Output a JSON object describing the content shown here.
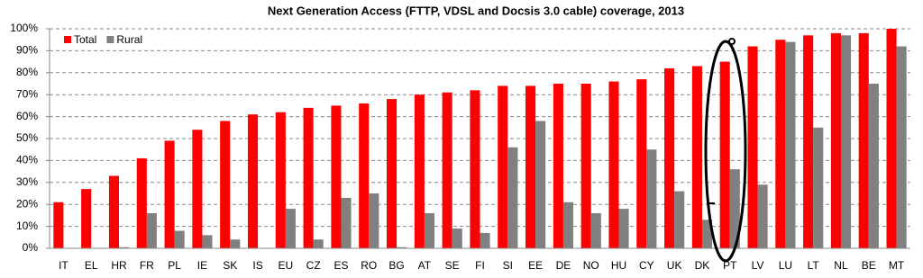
{
  "chart_data": {
    "type": "bar",
    "title": "Next Generation Access (FTTP, VDSL and Docsis 3.0 cable) coverage, 2013",
    "categories": [
      "IT",
      "EL",
      "HR",
      "FR",
      "PL",
      "IE",
      "SK",
      "IS",
      "EU",
      "CZ",
      "ES",
      "RO",
      "BG",
      "AT",
      "SE",
      "FI",
      "SI",
      "EE",
      "DE",
      "NO",
      "HU",
      "CY",
      "UK",
      "DK",
      "PT",
      "LV",
      "LU",
      "LT",
      "NL",
      "BE",
      "MT"
    ],
    "series": [
      {
        "name": "Total",
        "color": "#ff0000",
        "values": [
          21,
          27,
          33,
          41,
          49,
          54,
          58,
          61,
          62,
          64,
          65,
          66,
          68,
          70,
          71,
          72,
          74,
          74,
          75,
          75,
          76,
          77,
          82,
          83,
          85,
          92,
          95,
          97,
          98,
          98,
          100
        ]
      },
      {
        "name": "Rural",
        "color": "#808080",
        "values": [
          0,
          0,
          0.5,
          16,
          8,
          6,
          4,
          0,
          18,
          4,
          23,
          25,
          0.5,
          16,
          9,
          7,
          46,
          58,
          21,
          16,
          18,
          45,
          26,
          13,
          36,
          29,
          94,
          55,
          97,
          75,
          92
        ]
      }
    ],
    "ylim": [
      0,
      100
    ],
    "yticks": [
      {
        "value": 0,
        "label": "0%"
      },
      {
        "value": 10,
        "label": "10%"
      },
      {
        "value": 20,
        "label": "20%"
      },
      {
        "value": 30,
        "label": "30%"
      },
      {
        "value": 40,
        "label": "40%"
      },
      {
        "value": 50,
        "label": "50%"
      },
      {
        "value": 60,
        "label": "60%"
      },
      {
        "value": 70,
        "label": "70%"
      },
      {
        "value": 80,
        "label": "80%"
      },
      {
        "value": 90,
        "label": "90%"
      },
      {
        "value": 100,
        "label": "100%"
      }
    ],
    "grid": true,
    "legend": "top-left"
  }
}
